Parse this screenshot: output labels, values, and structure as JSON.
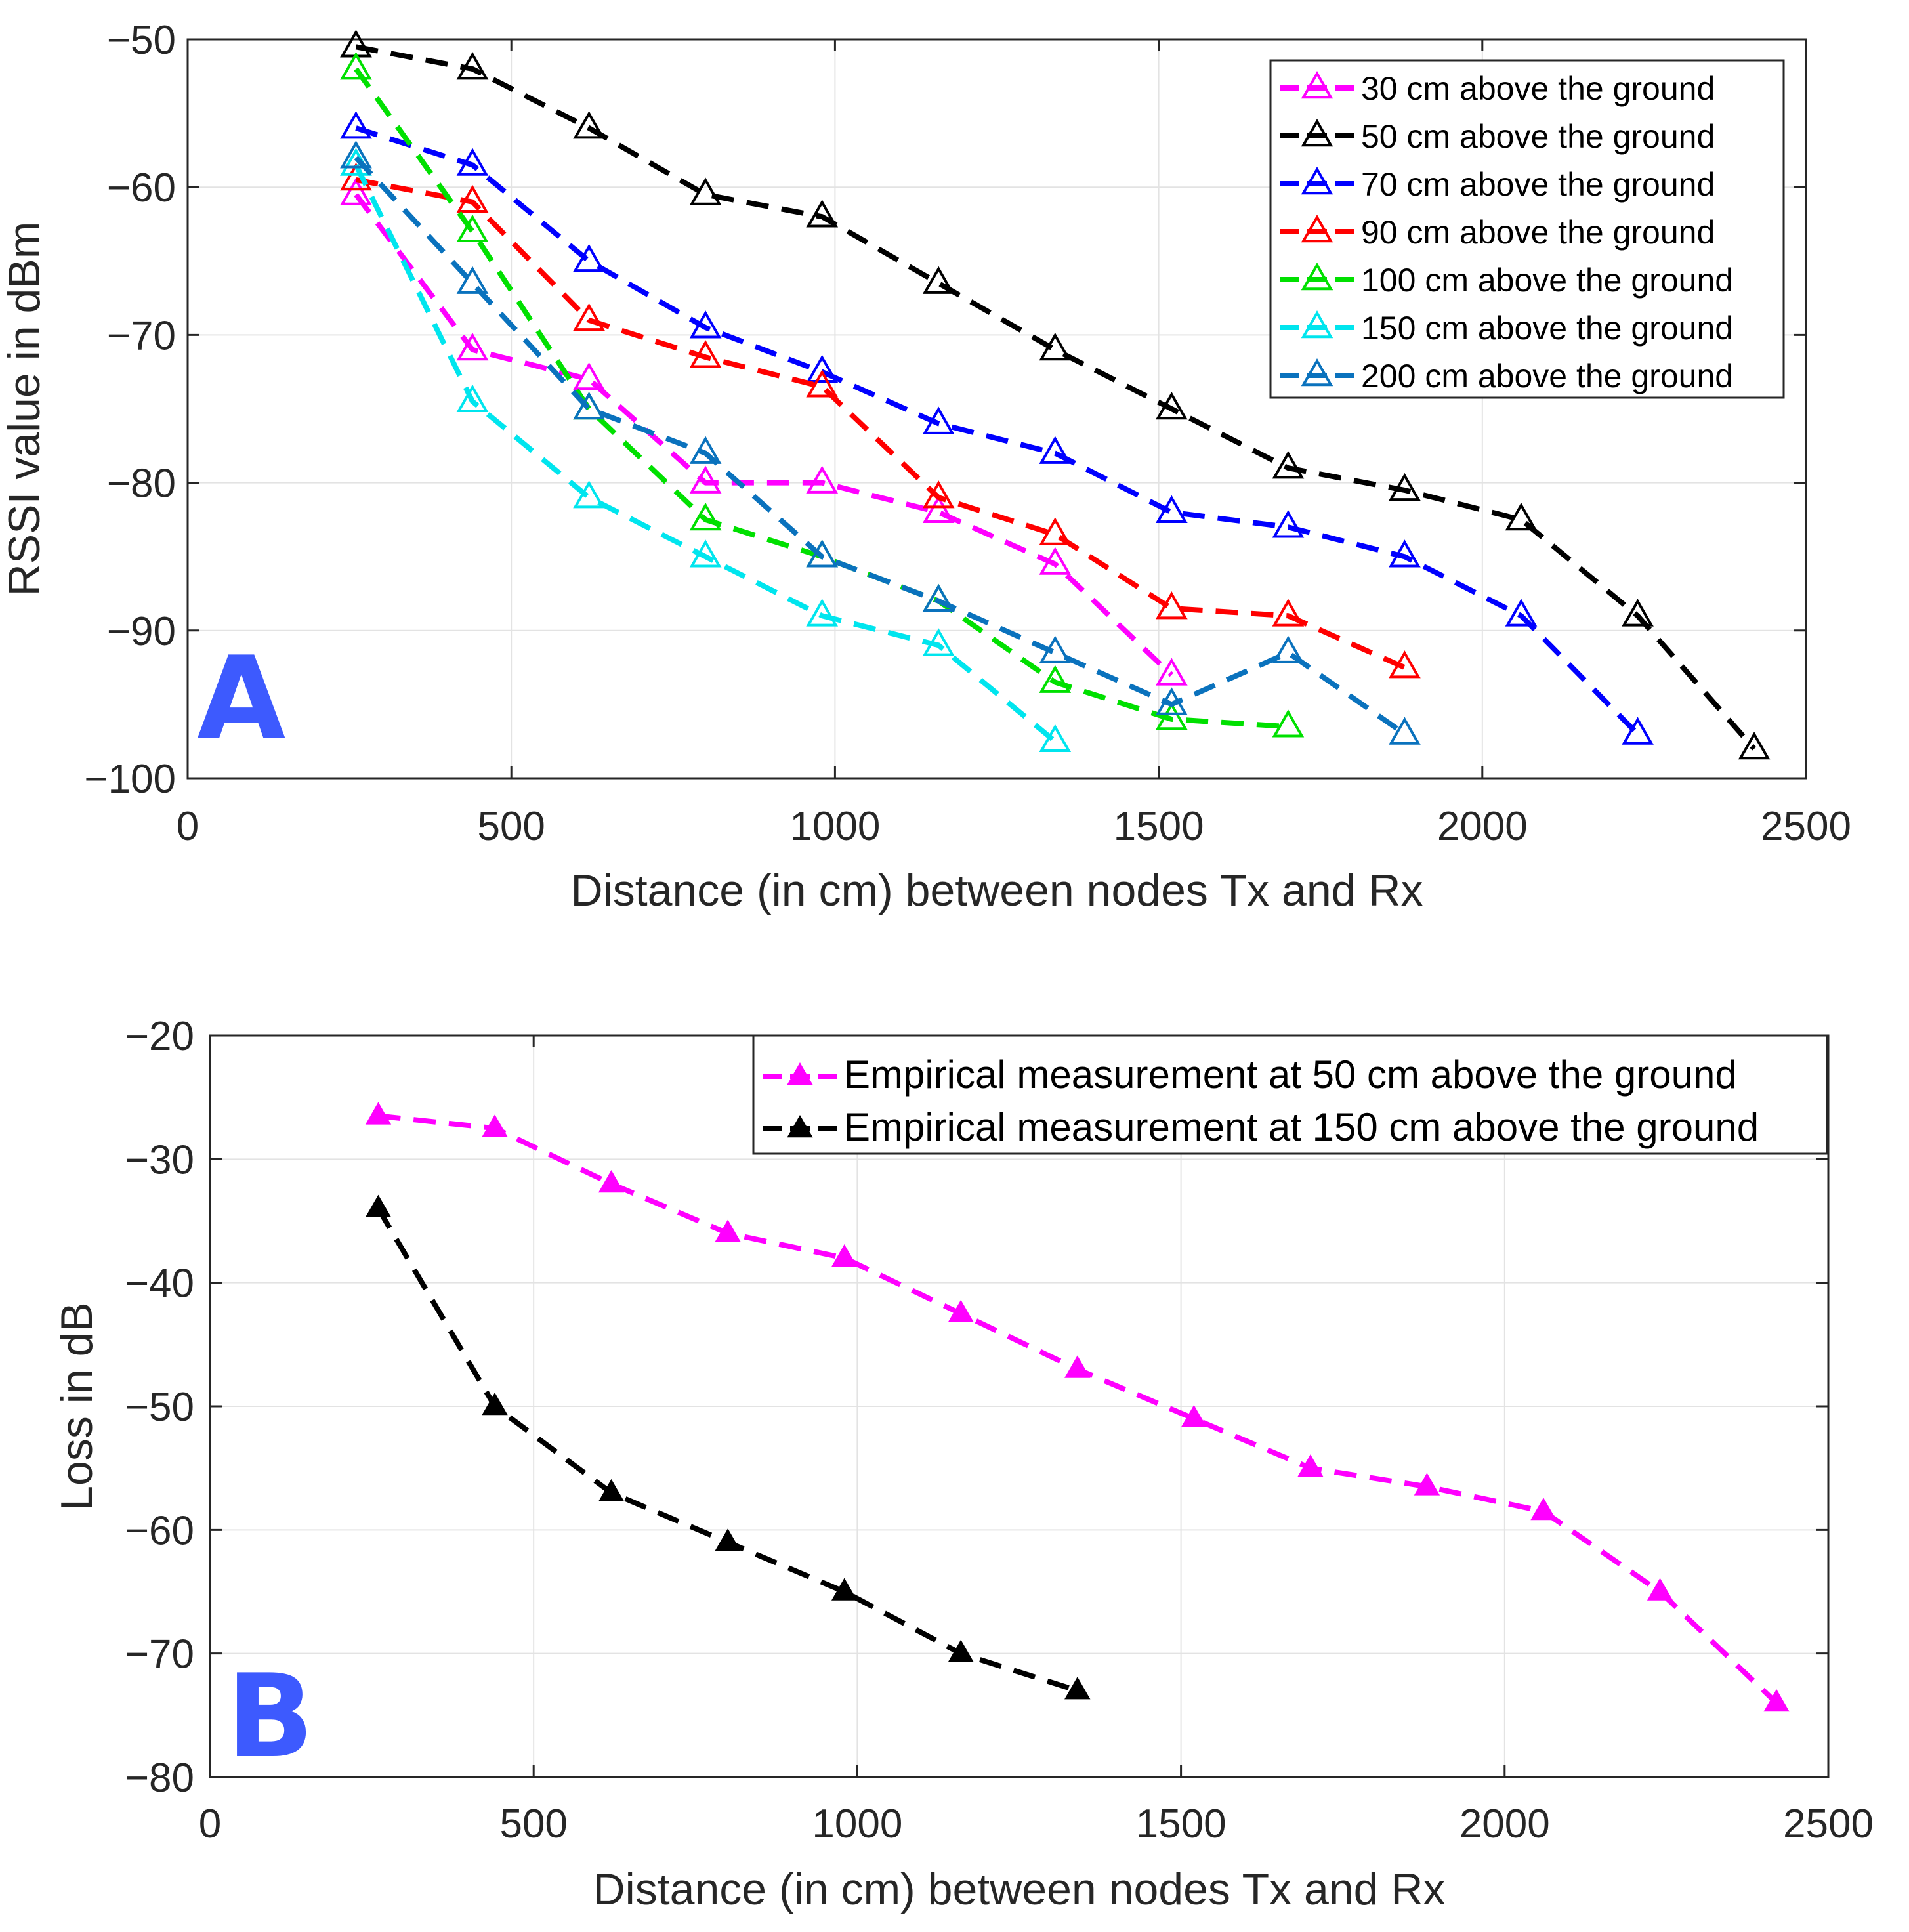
{
  "chart_data": [
    {
      "type": "line",
      "panel_label": "A",
      "title": "",
      "xlabel": "Distance (in cm) between nodes Tx and Rx",
      "ylabel": "RSSI value in dBm",
      "xlim": [
        0,
        2500
      ],
      "ylim": [
        -100,
        -50
      ],
      "xticks": [
        0,
        500,
        1000,
        1500,
        2000,
        2500
      ],
      "yticks": [
        -50,
        -60,
        -70,
        -80,
        -90,
        -100
      ],
      "grid": true,
      "legend_position": "top-right",
      "marker": "open-triangle",
      "series": [
        {
          "name": "30 cm above the ground",
          "color": "#ff00ff",
          "x": [
            260,
            440,
            620,
            800,
            980,
            1160,
            1340,
            1520
          ],
          "y": [
            -60.5,
            -71,
            -73,
            -80,
            -80,
            -82,
            -85.5,
            -93
          ]
        },
        {
          "name": "50 cm above the ground",
          "color": "#000000",
          "x": [
            260,
            440,
            620,
            800,
            980,
            1160,
            1340,
            1520,
            1700,
            1880,
            2060,
            2240,
            2420
          ],
          "y": [
            -50.5,
            -52,
            -56,
            -60.5,
            -62,
            -66.5,
            -71,
            -75,
            -79,
            -80.5,
            -82.5,
            -89,
            -98
          ]
        },
        {
          "name": "70 cm above the ground",
          "color": "#0000ff",
          "x": [
            260,
            440,
            620,
            800,
            980,
            1160,
            1340,
            1520,
            1700,
            1880,
            2060,
            2240
          ],
          "y": [
            -56,
            -58.5,
            -65,
            -69.5,
            -72.5,
            -76,
            -78,
            -82,
            -83,
            -85,
            -89,
            -97
          ]
        },
        {
          "name": "90 cm above the ground",
          "color": "#ff0000",
          "x": [
            260,
            440,
            620,
            800,
            980,
            1160,
            1340,
            1520,
            1700,
            1880
          ],
          "y": [
            -59.5,
            -61,
            -69,
            -71.5,
            -73.5,
            -81,
            -83.5,
            -88.5,
            -89,
            -92.5
          ]
        },
        {
          "name": "100 cm above the ground",
          "color": "#00e000",
          "x": [
            260,
            440,
            620,
            800,
            980,
            1160,
            1340,
            1520,
            1700
          ],
          "y": [
            -52,
            -63,
            -75,
            -82.5,
            -85,
            -88,
            -93.5,
            -96,
            -96.5
          ]
        },
        {
          "name": "150 cm above the ground",
          "color": "#00e5ee",
          "x": [
            260,
            440,
            620,
            800,
            980,
            1160,
            1340
          ],
          "y": [
            -58.5,
            -74.5,
            -81,
            -85,
            -89,
            -91,
            -97.5
          ]
        },
        {
          "name": "200 cm above the ground",
          "color": "#0a72bd",
          "x": [
            260,
            440,
            620,
            800,
            980,
            1160,
            1340,
            1520,
            1700,
            1880
          ],
          "y": [
            -58,
            -66.5,
            -75,
            -78,
            -85,
            -88,
            -91.5,
            -95,
            -91.5,
            -97
          ]
        }
      ]
    },
    {
      "type": "line",
      "panel_label": "B",
      "title": "",
      "xlabel": "Distance (in cm) between nodes Tx and Rx",
      "ylabel": "Loss in dB",
      "xlim": [
        0,
        2500
      ],
      "ylim": [
        -80,
        -20
      ],
      "xticks": [
        0,
        500,
        1000,
        1500,
        2000,
        2500
      ],
      "yticks": [
        -20,
        -30,
        -40,
        -50,
        -60,
        -70,
        -80
      ],
      "grid": true,
      "legend_position": "top-right",
      "marker": "filled-triangle",
      "series": [
        {
          "name": "Empirical measurement at 50 cm above the ground",
          "color": "#ff00ff",
          "x": [
            260,
            440,
            620,
            800,
            980,
            1160,
            1340,
            1520,
            1700,
            1880,
            2060,
            2240,
            2420
          ],
          "y": [
            -26.5,
            -27.5,
            -32,
            -36,
            -38,
            -42.5,
            -47,
            -51,
            -55,
            -56.5,
            -58.5,
            -65,
            -74
          ]
        },
        {
          "name": "Empirical measurement at 150 cm above the ground",
          "color": "#000000",
          "x": [
            260,
            440,
            620,
            800,
            980,
            1160,
            1340
          ],
          "y": [
            -34,
            -50,
            -57,
            -61,
            -65,
            -70,
            -73
          ]
        }
      ]
    }
  ]
}
